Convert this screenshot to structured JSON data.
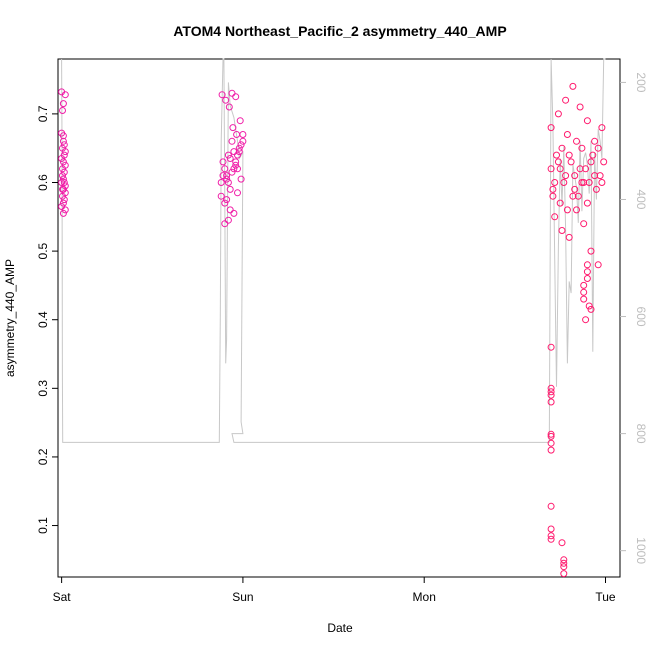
{
  "chart_data": {
    "type": "scatter",
    "title": "ATOM4 Northeast_Pacific_2 asymmetry_440_AMP",
    "xlabel": "Date",
    "ylabel": "asymmetry_440_AMP",
    "x_tick_labels": [
      "Sat",
      "Sun",
      "Mon",
      "Tue"
    ],
    "x_tick_values": [
      0,
      1,
      2,
      3
    ],
    "xlim": [
      -0.02,
      3.08
    ],
    "ylim": [
      0.025,
      0.78
    ],
    "y_ticks": [
      0.1,
      0.2,
      0.3,
      0.4,
      0.5,
      0.6,
      0.7
    ],
    "y2_ticks": [
      200,
      400,
      600,
      800,
      1000
    ],
    "y2lim": [
      1045,
      160
    ],
    "grid": false,
    "series": [
      {
        "kind": "points",
        "color": "#f01fa8",
        "x": [
          0.0,
          0.01,
          0.005,
          0.02,
          0.015,
          0.0,
          0.01,
          0.02,
          0.005,
          0.015,
          0.0,
          0.01,
          0.02,
          0.005,
          0.015,
          0.01,
          0.0,
          0.02,
          0.01,
          0.005,
          0.015,
          0.01,
          0.0,
          0.02,
          0.01,
          0.005,
          0.015,
          0.01,
          0.02,
          0.005
        ],
        "y": [
          0.672,
          0.66,
          0.65,
          0.645,
          0.64,
          0.635,
          0.63,
          0.625,
          0.62,
          0.615,
          0.6,
          0.59,
          0.585,
          0.58,
          0.575,
          0.57,
          0.565,
          0.56,
          0.555,
          0.61,
          0.655,
          0.668,
          0.732,
          0.728,
          0.715,
          0.705,
          0.6,
          0.605,
          0.595,
          0.59
        ]
      },
      {
        "kind": "points",
        "color": "#f01fa8",
        "x": [
          0.88,
          0.9,
          0.92,
          0.94,
          0.96,
          0.98,
          1.0,
          0.89,
          0.91,
          0.93,
          0.95,
          0.97,
          0.99,
          0.88,
          0.9,
          0.92,
          0.94,
          0.96,
          0.98,
          1.0,
          0.89,
          0.91,
          0.93,
          0.95,
          0.97,
          0.99,
          0.9,
          0.92,
          0.94,
          0.96,
          0.885,
          0.905,
          0.925,
          0.945,
          0.965,
          0.985,
          0.93,
          0.95,
          0.91,
          0.97
        ],
        "y": [
          0.6,
          0.62,
          0.64,
          0.66,
          0.63,
          0.65,
          0.67,
          0.61,
          0.605,
          0.59,
          0.62,
          0.64,
          0.655,
          0.58,
          0.57,
          0.6,
          0.615,
          0.625,
          0.645,
          0.66,
          0.63,
          0.61,
          0.635,
          0.645,
          0.62,
          0.605,
          0.54,
          0.545,
          0.73,
          0.725,
          0.728,
          0.72,
          0.71,
          0.68,
          0.67,
          0.69,
          0.56,
          0.555,
          0.575,
          0.585
        ]
      },
      {
        "kind": "points",
        "color": "#ff1a6e",
        "x": [
          2.7,
          2.72,
          2.74,
          2.76,
          2.78,
          2.8,
          2.82,
          2.84,
          2.86,
          2.88,
          2.9,
          2.92,
          2.94,
          2.96,
          2.98,
          2.71,
          2.73,
          2.75,
          2.77,
          2.79,
          2.81,
          2.83,
          2.85,
          2.87,
          2.89,
          2.91,
          2.93,
          2.95,
          2.97,
          2.99,
          2.7,
          2.74,
          2.78,
          2.82,
          2.86,
          2.9,
          2.94,
          2.98,
          2.72,
          2.76,
          2.8,
          2.84,
          2.88,
          2.92,
          2.96,
          2.71,
          2.75,
          2.79,
          2.83,
          2.87
        ],
        "y": [
          0.62,
          0.6,
          0.63,
          0.65,
          0.61,
          0.64,
          0.58,
          0.66,
          0.62,
          0.6,
          0.57,
          0.63,
          0.61,
          0.65,
          0.6,
          0.59,
          0.64,
          0.62,
          0.6,
          0.67,
          0.63,
          0.61,
          0.58,
          0.65,
          0.62,
          0.6,
          0.64,
          0.59,
          0.61,
          0.63,
          0.68,
          0.7,
          0.72,
          0.74,
          0.71,
          0.69,
          0.66,
          0.68,
          0.55,
          0.53,
          0.52,
          0.56,
          0.54,
          0.5,
          0.48,
          0.58,
          0.57,
          0.56,
          0.59,
          0.6
        ]
      },
      {
        "kind": "points",
        "color": "#ff1a6e",
        "x": [
          2.7,
          2.7,
          2.7,
          2.7,
          2.7,
          2.7,
          2.7,
          2.7,
          2.7,
          2.7,
          2.7,
          2.7,
          2.7,
          2.77,
          2.77,
          2.77,
          2.77,
          2.76,
          2.88,
          2.88,
          2.88,
          2.89,
          2.9,
          2.9,
          2.91,
          2.92,
          2.9
        ],
        "y": [
          0.36,
          0.3,
          0.295,
          0.29,
          0.28,
          0.233,
          0.23,
          0.22,
          0.21,
          0.128,
          0.095,
          0.085,
          0.08,
          0.05,
          0.045,
          0.04,
          0.03,
          0.075,
          0.45,
          0.44,
          0.43,
          0.4,
          0.48,
          0.46,
          0.42,
          0.415,
          0.47
        ]
      },
      {
        "kind": "depth-line",
        "color": "#c8c8c8",
        "axis": "right",
        "x": [
          0.0,
          0.002,
          0.004,
          0.006,
          0.87,
          0.875,
          0.88,
          0.89,
          0.895,
          0.9,
          0.905,
          0.91,
          0.915,
          0.92,
          0.93,
          0.95,
          0.97,
          0.98,
          1.0,
          0.99,
          1.0,
          0.94,
          0.95,
          1.5,
          2.0,
          2.5,
          2.69,
          2.7,
          2.71,
          2.72,
          2.73,
          2.74,
          2.75,
          2.76,
          2.77,
          2.78,
          2.79,
          2.8,
          2.81,
          2.82,
          2.83,
          2.84,
          2.85,
          2.86,
          2.87,
          2.88,
          2.89,
          2.9,
          2.91,
          2.92,
          2.93,
          2.94,
          2.95,
          2.96,
          2.97,
          2.98,
          2.99,
          3.0
        ],
        "y": [
          160,
          300,
          700,
          815,
          815,
          600,
          300,
          160,
          160,
          400,
          680,
          640,
          420,
          200,
          240,
          260,
          300,
          330,
          320,
          780,
          800,
          800,
          815,
          815,
          815,
          815,
          815,
          160,
          270,
          500,
          720,
          480,
          330,
          410,
          310,
          450,
          680,
          540,
          560,
          340,
          360,
          380,
          440,
          300,
          420,
          330,
          320,
          340,
          390,
          300,
          660,
          320,
          400,
          280,
          300,
          330,
          160,
          160
        ]
      }
    ]
  }
}
